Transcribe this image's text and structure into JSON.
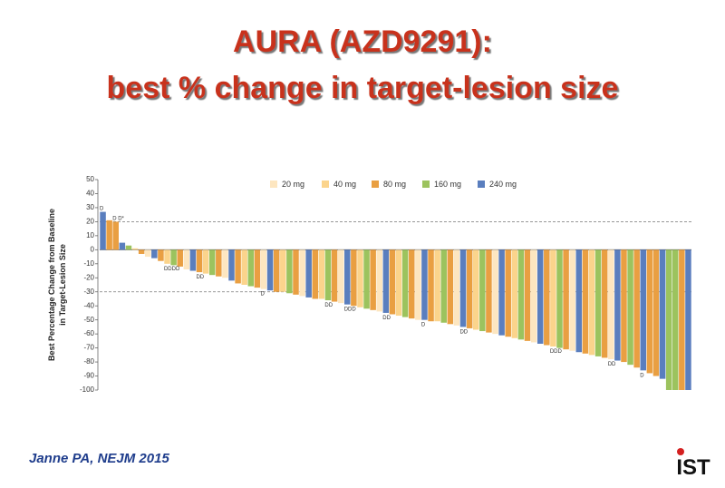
{
  "title": [
    "AURA (AZD9291):",
    "best % change in target-lesion size"
  ],
  "citation": "Janne PA, NEJM 2015",
  "logo": "IST",
  "chart_data": {
    "type": "bar",
    "y_label": [
      "Best Percentage Change from Baseline",
      "in Target-Lesion Size"
    ],
    "ylim": [
      -100,
      50
    ],
    "yticks": [
      50,
      40,
      30,
      20,
      10,
      0,
      -10,
      -20,
      -30,
      -40,
      -50,
      -60,
      -70,
      -80,
      -90,
      -100
    ],
    "reference_lines": [
      20,
      -30
    ],
    "legend": [
      {
        "name": "20 mg",
        "color": "#fde6c0"
      },
      {
        "name": "40 mg",
        "color": "#fbd48c"
      },
      {
        "name": "80 mg",
        "color": "#e99f42"
      },
      {
        "name": "160 mg",
        "color": "#9cc35e"
      },
      {
        "name": "240 mg",
        "color": "#5a7ebe"
      }
    ],
    "values": [
      27,
      21,
      20,
      5,
      3,
      1,
      -3,
      -5,
      -6,
      -8,
      -10,
      -11,
      -12,
      -14,
      -15,
      -16,
      -17,
      -18,
      -19,
      -20,
      -22,
      -24,
      -25,
      -26,
      -27,
      -28,
      -29,
      -30,
      -30,
      -31,
      -32,
      -33,
      -34,
      -35,
      -35,
      -36,
      -37,
      -38,
      -39,
      -40,
      -41,
      -42,
      -43,
      -44,
      -45,
      -46,
      -47,
      -48,
      -49,
      -50,
      -50,
      -51,
      -51,
      -52,
      -53,
      -54,
      -55,
      -56,
      -57,
      -58,
      -59,
      -60,
      -61,
      -62,
      -63,
      -64,
      -65,
      -66,
      -67,
      -68,
      -69,
      -70,
      -71,
      -72,
      -73,
      -74,
      -75,
      -76,
      -77,
      -78,
      -79,
      -80,
      -82,
      -84,
      -86,
      -88,
      -90,
      -92,
      -100,
      -100,
      -100,
      -100
    ],
    "colors": [
      "#5a7ebe",
      "#e99f42",
      "#e99f42",
      "#5a7ebe",
      "#9cc35e",
      "#fbd48c",
      "#e99f42",
      "#fde6c0",
      "#5a7ebe",
      "#e99f42",
      "#fbd48c",
      "#9cc35e",
      "#e99f42",
      "#fde6c0",
      "#5a7ebe",
      "#e99f42",
      "#fbd48c",
      "#9cc35e",
      "#e99f42",
      "#fde6c0",
      "#5a7ebe",
      "#e99f42",
      "#fbd48c",
      "#9cc35e",
      "#e99f42",
      "#fde6c0",
      "#5a7ebe",
      "#e99f42",
      "#fbd48c",
      "#9cc35e",
      "#e99f42",
      "#fde6c0",
      "#5a7ebe",
      "#e99f42",
      "#fbd48c",
      "#9cc35e",
      "#e99f42",
      "#fde6c0",
      "#5a7ebe",
      "#e99f42",
      "#fbd48c",
      "#9cc35e",
      "#e99f42",
      "#fde6c0",
      "#5a7ebe",
      "#e99f42",
      "#fbd48c",
      "#9cc35e",
      "#e99f42",
      "#fde6c0",
      "#5a7ebe",
      "#e99f42",
      "#fbd48c",
      "#9cc35e",
      "#e99f42",
      "#fde6c0",
      "#5a7ebe",
      "#e99f42",
      "#fbd48c",
      "#9cc35e",
      "#e99f42",
      "#fde6c0",
      "#5a7ebe",
      "#e99f42",
      "#fbd48c",
      "#9cc35e",
      "#e99f42",
      "#fde6c0",
      "#5a7ebe",
      "#e99f42",
      "#fbd48c",
      "#9cc35e",
      "#e99f42",
      "#fde6c0",
      "#5a7ebe",
      "#e99f42",
      "#fbd48c",
      "#9cc35e",
      "#e99f42",
      "#fde6c0",
      "#5a7ebe",
      "#e99f42",
      "#9cc35e",
      "#e99f42",
      "#5a7ebe",
      "#e99f42",
      "#e99f42",
      "#5a7ebe",
      "#9cc35e",
      "#9cc35e",
      "#e99f42",
      "#5a7ebe"
    ],
    "annotations": [
      {
        "index": 0,
        "text": "D"
      },
      {
        "index": 2,
        "text": "D D*"
      },
      {
        "index": 10,
        "text": "DDDD"
      },
      {
        "index": 15,
        "text": "DD"
      },
      {
        "index": 25,
        "text": "D"
      },
      {
        "index": 35,
        "text": "DD"
      },
      {
        "index": 38,
        "text": "DDD"
      },
      {
        "index": 44,
        "text": "DD"
      },
      {
        "index": 50,
        "text": "D"
      },
      {
        "index": 56,
        "text": "DD"
      },
      {
        "index": 70,
        "text": "DDD"
      },
      {
        "index": 79,
        "text": "DD"
      },
      {
        "index": 84,
        "text": "D"
      }
    ]
  }
}
